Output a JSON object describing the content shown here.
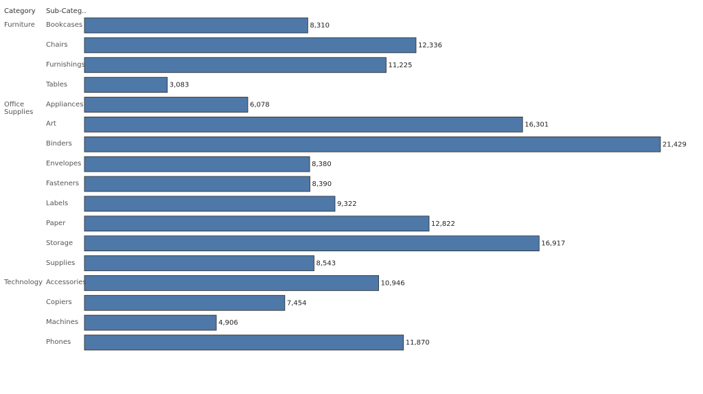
{
  "chart_data": {
    "type": "bar",
    "row_headers": [
      "Category",
      "Sub-Categ.."
    ],
    "category_labels": [
      "Furniture",
      null,
      null,
      null,
      "Office Supplies",
      null,
      null,
      null,
      null,
      null,
      null,
      null,
      null,
      "Technology",
      null,
      null,
      null
    ],
    "categories": [
      "Bookcases",
      "Chairs",
      "Furnishings",
      "Tables",
      "Appliances",
      "Art",
      "Binders",
      "Envelopes",
      "Fasteners",
      "Labels",
      "Paper",
      "Storage",
      "Supplies",
      "Accessories",
      "Copiers",
      "Machines",
      "Phones"
    ],
    "values": [
      8310,
      12336,
      11225,
      3083,
      6078,
      16301,
      21429,
      8380,
      8390,
      9322,
      12822,
      16917,
      8543,
      10946,
      7454,
      4906,
      11870
    ],
    "value_labels": [
      "8,310",
      "12,336",
      "11,225",
      "3,083",
      "6,078",
      "16,301",
      "21,429",
      "8,380",
      "8,390",
      "9,322",
      "12,822",
      "16,917",
      "8,543",
      "10,946",
      "7,454",
      "4,906",
      "11,870"
    ],
    "color": "#4e78a8"
  }
}
